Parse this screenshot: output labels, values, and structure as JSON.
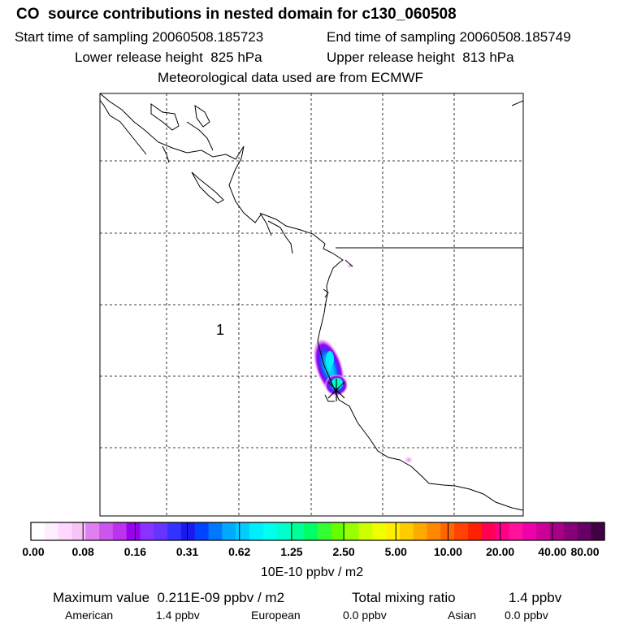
{
  "header": {
    "title": "CO  source contributions in nested domain for c130_060508",
    "start_sampling": "Start time of sampling 20060508.185723",
    "end_sampling": "End time of sampling 20060508.185749",
    "lower_release": "Lower release height  825 hPa",
    "upper_release": "Upper release height  813 hPa",
    "met_data": "Meteorological data used are from ECMWF"
  },
  "map": {
    "region_label": "1",
    "receptor_marker": "x-cross-icon"
  },
  "colorbar": {
    "labels": [
      "0.00",
      "0.08",
      "0.16",
      "0.31",
      "0.62",
      "1.25",
      "2.50",
      "5.00",
      "10.00",
      "20.00",
      "40.00",
      "80.00"
    ],
    "colors": [
      "#ffffff",
      "#ffeeff",
      "#ffd8ff",
      "#f8c4f8",
      "#e080f0",
      "#cc55ee",
      "#bb33ee",
      "#9900ee",
      "#8833ff",
      "#6633ff",
      "#3333ff",
      "#1a1aee",
      "#0044ff",
      "#0077ff",
      "#00aaff",
      "#00ccff",
      "#00eeff",
      "#00ffee",
      "#00ffcc",
      "#00ff99",
      "#00ff66",
      "#33ff33",
      "#66ff00",
      "#99ff00",
      "#ccff00",
      "#eeff00",
      "#ffee00",
      "#ffcc00",
      "#ffaa00",
      "#ff8800",
      "#ff6600",
      "#ff4400",
      "#ff2200",
      "#ff0055",
      "#ff0088",
      "#ff1199",
      "#ee00aa",
      "#cc0099",
      "#aa0088",
      "#880077",
      "#660066",
      "#440044"
    ],
    "units": "10E-10 ppbv / m2"
  },
  "footer": {
    "max_value": "Maximum value  0.211E-09 ppbv / m2",
    "total_mixing_label": "Total mixing ratio",
    "total_mixing_value": "1.4 ppbv",
    "american_label": "American",
    "american_value": "1.4 ppbv",
    "european_label": "European",
    "european_value": "0.0 ppbv",
    "asian_label": "Asian",
    "asian_value": "0.0 ppbv"
  }
}
